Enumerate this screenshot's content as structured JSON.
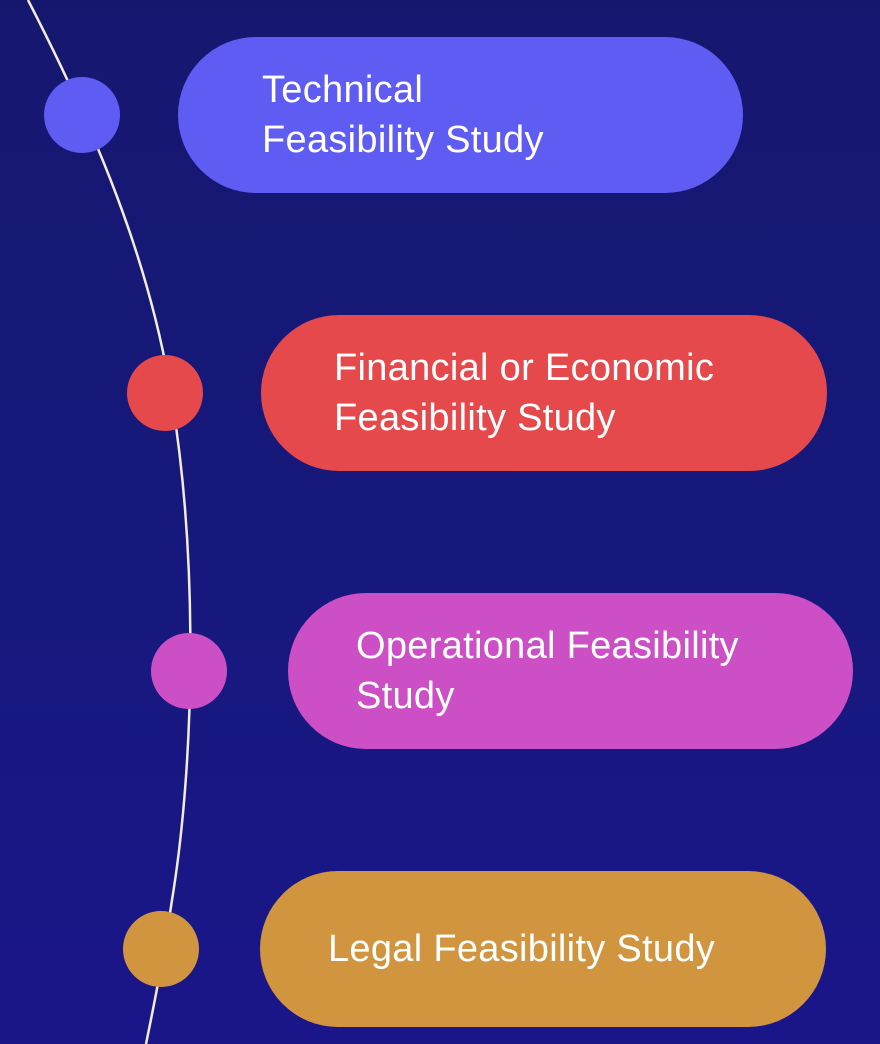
{
  "colors": {
    "background": "#17187a",
    "timeline_line": "#f2ecdc",
    "technical": "#5f5cf4",
    "financial": "#e5494b",
    "operational": "#cd4fc6",
    "legal": "#d2953f"
  },
  "steps": [
    {
      "label": "Technical\nFeasibility Study"
    },
    {
      "label": "Financial or Economic\nFeasibility Study"
    },
    {
      "label": "Operational Feasibility\nStudy"
    },
    {
      "label": "Legal Feasibility Study"
    }
  ]
}
